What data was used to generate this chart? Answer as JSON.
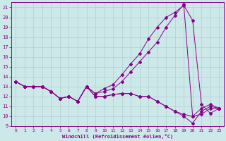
{
  "xlabel": "Windchill (Refroidissement éolien,°C)",
  "background_color": "#cce8e8",
  "line_color": "#8b008b",
  "grid_color": "#b0d0d0",
  "xlim": [
    -0.5,
    23.5
  ],
  "ylim": [
    9,
    21.5
  ],
  "xticks": [
    0,
    1,
    2,
    3,
    4,
    5,
    6,
    7,
    8,
    9,
    10,
    11,
    12,
    13,
    14,
    15,
    16,
    17,
    18,
    19,
    20,
    21,
    22,
    23
  ],
  "yticks": [
    9,
    10,
    11,
    12,
    13,
    14,
    15,
    16,
    17,
    18,
    19,
    20,
    21
  ],
  "lines": [
    {
      "x": [
        0,
        1,
        2,
        3,
        4,
        5,
        6,
        7,
        8,
        9,
        10,
        11,
        12,
        13,
        14,
        15,
        16,
        17,
        18,
        19,
        20,
        21,
        22,
        23
      ],
      "y": [
        13.5,
        13.0,
        13.0,
        13.0,
        12.5,
        11.8,
        12.0,
        11.5,
        13.0,
        12.3,
        12.8,
        13.2,
        14.2,
        15.3,
        16.3,
        17.8,
        19.0,
        20.0,
        20.5,
        21.2,
        19.7,
        11.2,
        10.3,
        10.8
      ]
    },
    {
      "x": [
        0,
        1,
        2,
        3,
        4,
        5,
        6,
        7,
        8,
        9,
        10,
        11,
        12,
        13,
        14,
        15,
        16,
        17,
        18,
        19,
        20,
        21,
        22,
        23
      ],
      "y": [
        13.5,
        13.0,
        13.0,
        13.0,
        12.5,
        11.8,
        12.0,
        11.5,
        13.0,
        12.3,
        12.5,
        12.8,
        13.5,
        14.5,
        15.5,
        16.5,
        17.5,
        19.0,
        20.2,
        21.3,
        10.0,
        10.2,
        10.8,
        10.8
      ]
    },
    {
      "x": [
        0,
        1,
        2,
        3,
        4,
        5,
        6,
        7,
        8,
        9,
        10,
        11,
        12,
        13,
        14,
        15,
        16,
        17,
        18,
        19,
        20,
        21,
        22,
        23
      ],
      "y": [
        13.5,
        13.0,
        13.0,
        13.0,
        12.5,
        11.8,
        12.0,
        11.5,
        13.0,
        12.0,
        12.0,
        12.2,
        12.3,
        12.3,
        12.0,
        12.0,
        11.5,
        11.0,
        10.5,
        10.0,
        9.3,
        10.5,
        11.0,
        10.8
      ]
    },
    {
      "x": [
        0,
        1,
        2,
        3,
        4,
        5,
        6,
        7,
        8,
        9,
        10,
        11,
        12,
        13,
        14,
        15,
        16,
        17,
        18,
        19,
        20,
        21,
        22,
        23
      ],
      "y": [
        13.5,
        13.0,
        13.0,
        13.0,
        12.5,
        11.8,
        12.0,
        11.5,
        13.0,
        12.0,
        12.0,
        12.2,
        12.3,
        12.3,
        12.0,
        12.0,
        11.5,
        11.0,
        10.5,
        10.2,
        10.0,
        10.8,
        11.2,
        10.8
      ]
    }
  ]
}
